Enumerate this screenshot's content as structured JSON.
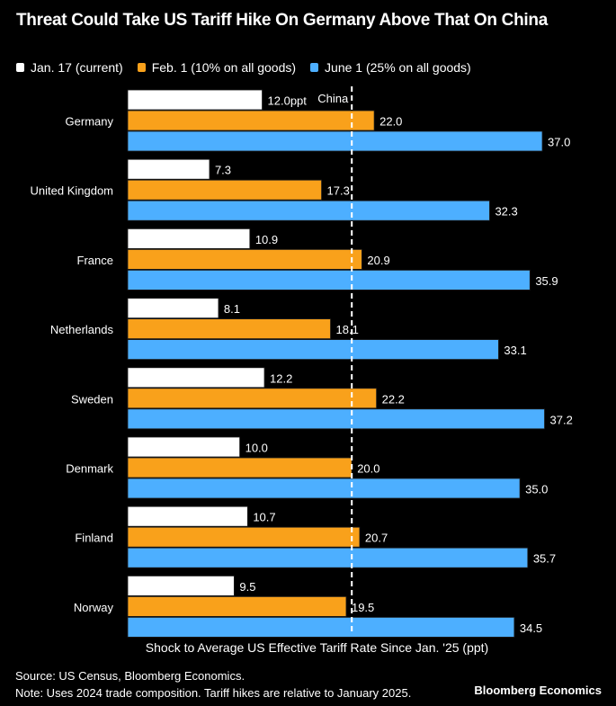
{
  "title": "Threat Could Take US Tariff Hike On Germany Above That On China",
  "legend": [
    {
      "label": "Jan. 17 (current)",
      "color": "#ffffff"
    },
    {
      "label": "Feb. 1 (10% on all goods)",
      "color": "#f9a11b"
    },
    {
      "label": "June 1 (25% on all goods)",
      "color": "#4dafff"
    }
  ],
  "footer": {
    "source": "Source: US Census, Bloomberg Economics.",
    "note": "Note: Uses 2024 trade composition. Tariff hikes are relative to January 2025.",
    "brand": "Bloomberg Economics"
  },
  "chart_data": {
    "type": "bar",
    "orientation": "horizontal",
    "title": "Threat Could Take US Tariff Hike On Germany Above That On China",
    "xlabel": "Shock to Average US Effective Tariff Rate Since Jan. '25 (ppt)",
    "ylabel": "",
    "xlim": [
      0,
      44
    ],
    "grid": false,
    "legend_position": "top-left",
    "categories": [
      "Germany",
      "United Kingdom",
      "France",
      "Netherlands",
      "Sweden",
      "Denmark",
      "Finland",
      "Norway"
    ],
    "series": [
      {
        "name": "Jan. 17 (current)",
        "color": "#ffffff",
        "values": [
          12.0,
          7.3,
          10.9,
          8.1,
          12.2,
          10.0,
          10.7,
          9.5
        ],
        "labels": [
          "12.0ppt",
          "7.3",
          "10.9",
          "8.1",
          "12.2",
          "10.0",
          "10.7",
          "9.5"
        ]
      },
      {
        "name": "Feb. 1 (10% on all goods)",
        "color": "#f9a11b",
        "values": [
          22.0,
          17.3,
          20.9,
          18.1,
          22.2,
          20.0,
          20.7,
          19.5
        ],
        "labels": [
          "22.0",
          "17.3",
          "20.9",
          "18.1",
          "22.2",
          "20.0",
          "20.7",
          "19.5"
        ]
      },
      {
        "name": "June 1 (25% on all goods)",
        "color": "#4dafff",
        "values": [
          37.0,
          32.3,
          35.9,
          33.1,
          37.2,
          35.0,
          35.7,
          34.5
        ],
        "labels": [
          "37.0",
          "32.3",
          "35.9",
          "33.1",
          "37.2",
          "35.0",
          "35.7",
          "34.5"
        ]
      }
    ],
    "reference_line": {
      "label": "China",
      "value": 20.0,
      "style": "dashed",
      "color": "#ffffff"
    }
  }
}
